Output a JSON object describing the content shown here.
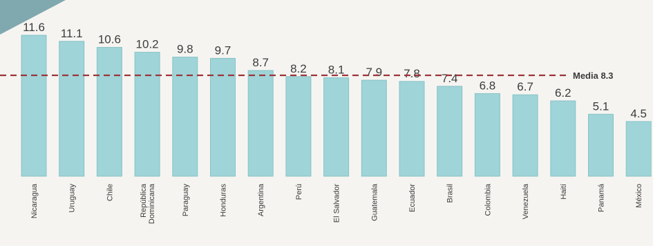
{
  "chart_data": {
    "type": "bar",
    "categories": [
      "Nicaragua",
      "Uruguay",
      "Chile",
      "República Dominicana",
      "Paraguay",
      "Honduras",
      "Argentina",
      "Perú",
      "El Salvador",
      "Guatemala",
      "Ecuador",
      "Brasil",
      "Colombia",
      "Venezuela",
      "Haití",
      "Panamá",
      "México"
    ],
    "category_lines": [
      [
        "Nicaragua"
      ],
      [
        "Uruguay"
      ],
      [
        "Chile"
      ],
      [
        "República",
        "Dominicana"
      ],
      [
        "Paraguay"
      ],
      [
        "Honduras"
      ],
      [
        "Argentina"
      ],
      [
        "Perú"
      ],
      [
        "El Salvador"
      ],
      [
        "Guatemala"
      ],
      [
        "Ecuador"
      ],
      [
        "Brasil"
      ],
      [
        "Colombia"
      ],
      [
        "Venezuela"
      ],
      [
        "Haití"
      ],
      [
        "Panamá"
      ],
      [
        "México"
      ]
    ],
    "values": [
      11.6,
      11.1,
      10.6,
      10.2,
      9.8,
      9.7,
      8.7,
      8.2,
      8.1,
      7.9,
      7.8,
      7.4,
      6.8,
      6.7,
      6.2,
      5.1,
      4.5
    ],
    "value_labels": [
      "11.6",
      "11.1",
      "10.6",
      "10.2",
      "9.8",
      "9.7",
      "8.7",
      "8.2",
      "8.1",
      "7.9",
      "7.8",
      "7.4",
      "6.8",
      "6.7",
      "6.2",
      "5.1",
      "4.5"
    ],
    "reference_line": {
      "label": "Media 8.3",
      "value": 8.3,
      "style": "dashed"
    },
    "colors": {
      "bar": "#9fd4d8",
      "bar_edge": "#86c3c7",
      "mean_line": "#9a3438",
      "corner_flag": "#7fa9ae",
      "background": "#f6f4f1",
      "text": "#3b3b3b"
    },
    "ylim": [
      0,
      11.6
    ],
    "title": "",
    "xlabel": "",
    "ylabel": ""
  }
}
